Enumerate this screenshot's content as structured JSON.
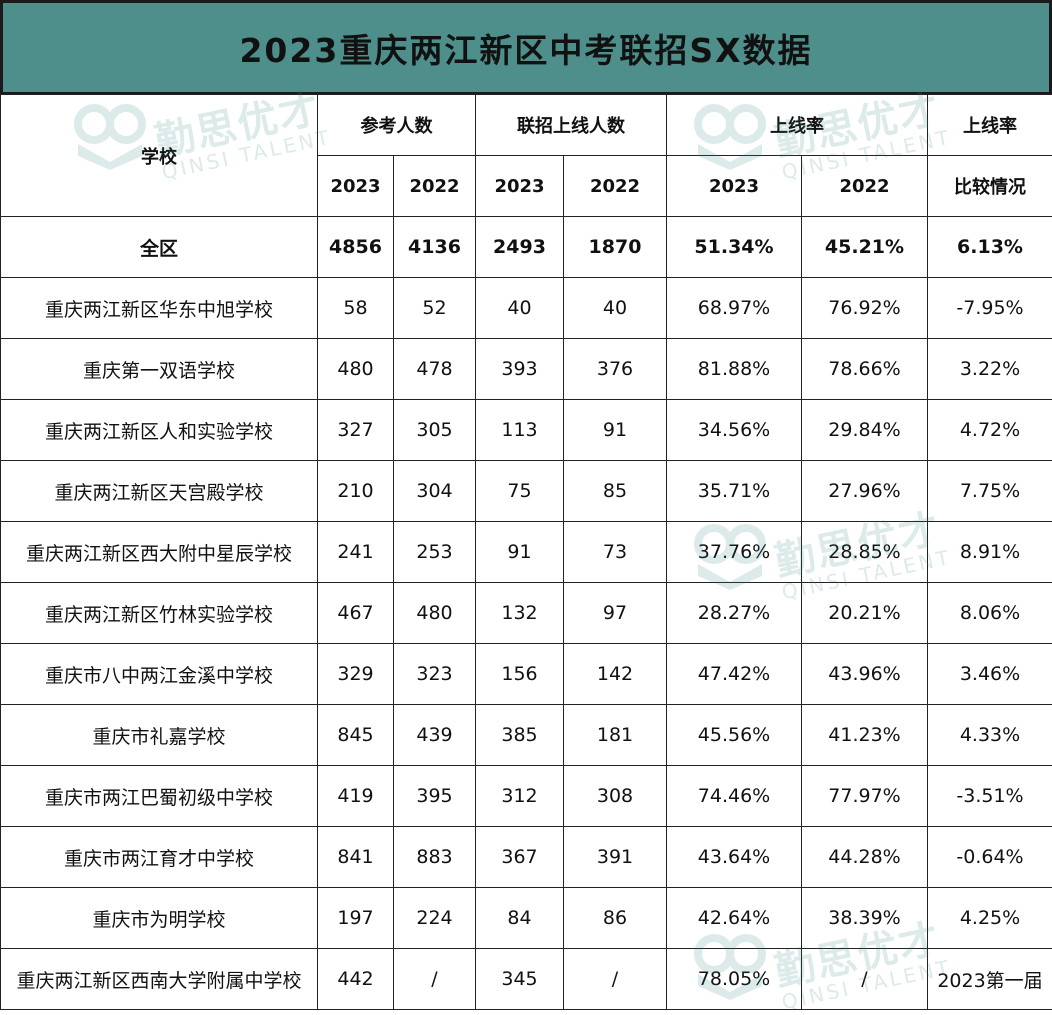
{
  "title": "2023重庆两江新区中考联招SX数据",
  "header": {
    "school": "学校",
    "exam_takers": "参考人数",
    "admitted": "联招上线人数",
    "rate": "上线率",
    "rate_compare_top": "上线率",
    "rate_compare_bottom": "比较情况",
    "years": [
      "2023",
      "2022",
      "2023",
      "2022",
      "2023",
      "2022"
    ]
  },
  "total": {
    "school": "全区",
    "takers_2023": "4856",
    "takers_2022": "4136",
    "admit_2023": "2493",
    "admit_2022": "1870",
    "rate_2023": "51.34%",
    "rate_2022": "45.21%",
    "diff": "6.13%"
  },
  "rows": [
    {
      "school": "重庆两江新区华东中旭学校",
      "takers_2023": "58",
      "takers_2022": "52",
      "admit_2023": "40",
      "admit_2022": "40",
      "rate_2023": "68.97%",
      "rate_2022": "76.92%",
      "diff": "-7.95%"
    },
    {
      "school": "重庆第一双语学校",
      "takers_2023": "480",
      "takers_2022": "478",
      "admit_2023": "393",
      "admit_2022": "376",
      "rate_2023": "81.88%",
      "rate_2022": "78.66%",
      "diff": "3.22%"
    },
    {
      "school": "重庆两江新区人和实验学校",
      "takers_2023": "327",
      "takers_2022": "305",
      "admit_2023": "113",
      "admit_2022": "91",
      "rate_2023": "34.56%",
      "rate_2022": "29.84%",
      "diff": "4.72%"
    },
    {
      "school": "重庆两江新区天宫殿学校",
      "takers_2023": "210",
      "takers_2022": "304",
      "admit_2023": "75",
      "admit_2022": "85",
      "rate_2023": "35.71%",
      "rate_2022": "27.96%",
      "diff": "7.75%"
    },
    {
      "school": "重庆两江新区西大附中星辰学校",
      "takers_2023": "241",
      "takers_2022": "253",
      "admit_2023": "91",
      "admit_2022": "73",
      "rate_2023": "37.76%",
      "rate_2022": "28.85%",
      "diff": "8.91%"
    },
    {
      "school": "重庆两江新区竹林实验学校",
      "takers_2023": "467",
      "takers_2022": "480",
      "admit_2023": "132",
      "admit_2022": "97",
      "rate_2023": "28.27%",
      "rate_2022": "20.21%",
      "diff": "8.06%"
    },
    {
      "school": "重庆市八中两江金溪中学校",
      "takers_2023": "329",
      "takers_2022": "323",
      "admit_2023": "156",
      "admit_2022": "142",
      "rate_2023": "47.42%",
      "rate_2022": "43.96%",
      "diff": "3.46%"
    },
    {
      "school": "重庆市礼嘉学校",
      "takers_2023": "845",
      "takers_2022": "439",
      "admit_2023": "385",
      "admit_2022": "181",
      "rate_2023": "45.56%",
      "rate_2022": "41.23%",
      "diff": "4.33%"
    },
    {
      "school": "重庆市两江巴蜀初级中学校",
      "takers_2023": "419",
      "takers_2022": "395",
      "admit_2023": "312",
      "admit_2022": "308",
      "rate_2023": "74.46%",
      "rate_2022": "77.97%",
      "diff": "-3.51%"
    },
    {
      "school": "重庆市两江育才中学校",
      "takers_2023": "841",
      "takers_2022": "883",
      "admit_2023": "367",
      "admit_2022": "391",
      "rate_2023": "43.64%",
      "rate_2022": "44.28%",
      "diff": "-0.64%"
    },
    {
      "school": "重庆市为明学校",
      "takers_2023": "197",
      "takers_2022": "224",
      "admit_2023": "84",
      "admit_2022": "86",
      "rate_2023": "42.64%",
      "rate_2022": "38.39%",
      "diff": "4.25%"
    },
    {
      "school": "重庆两江新区西南大学附属中学校",
      "takers_2023": "442",
      "takers_2022": "/",
      "admit_2023": "345",
      "admit_2022": "/",
      "rate_2023": "78.05%",
      "rate_2022": "/",
      "diff": "2023第一届"
    }
  ],
  "watermark": {
    "cn": "勤思优才",
    "en": "QINSI TALENT",
    "icon": "owl-book-logo-icon",
    "color": "#2f7f85"
  }
}
